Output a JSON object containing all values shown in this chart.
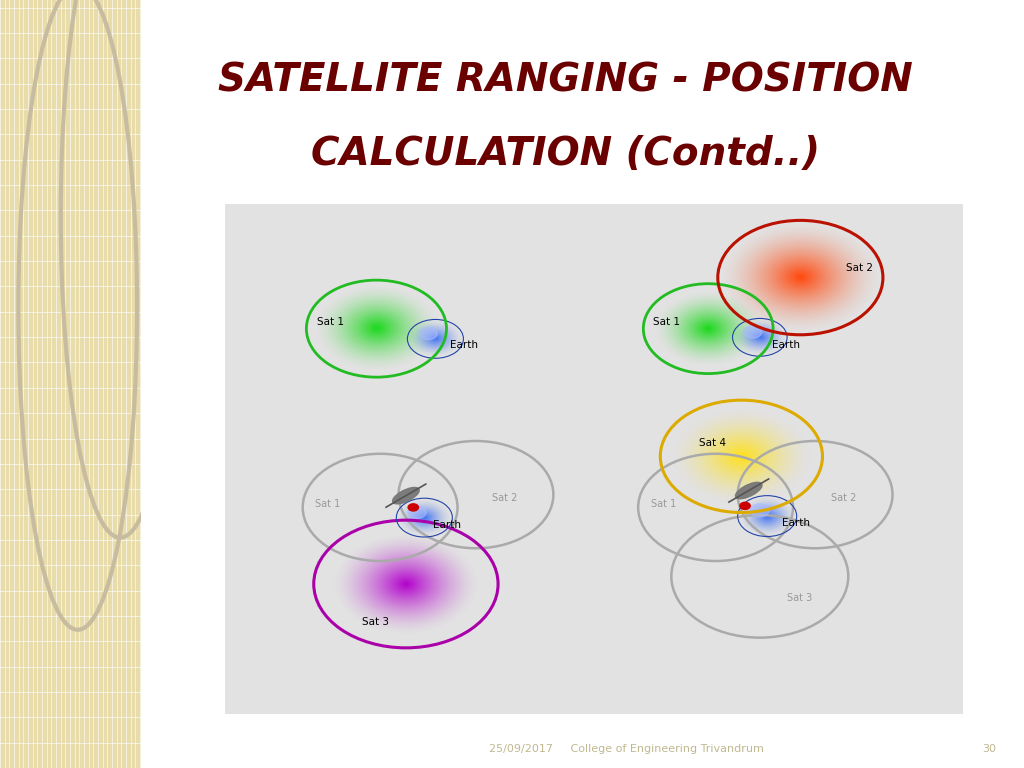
{
  "title_line1": "SATELLITE RANGING - POSITION",
  "title_line2": "CALCULATION (Contd..)",
  "title_color": "#6B0000",
  "title_fontsize": 28,
  "bg_color": "#FFFFFF",
  "left_panel_color": "#E8DCAA",
  "diagram_bg": "#E2E2E2",
  "footer_text": "25/09/2017     College of Engineering Trivandrum",
  "footer_page": "30",
  "footer_color": "#C0B890"
}
